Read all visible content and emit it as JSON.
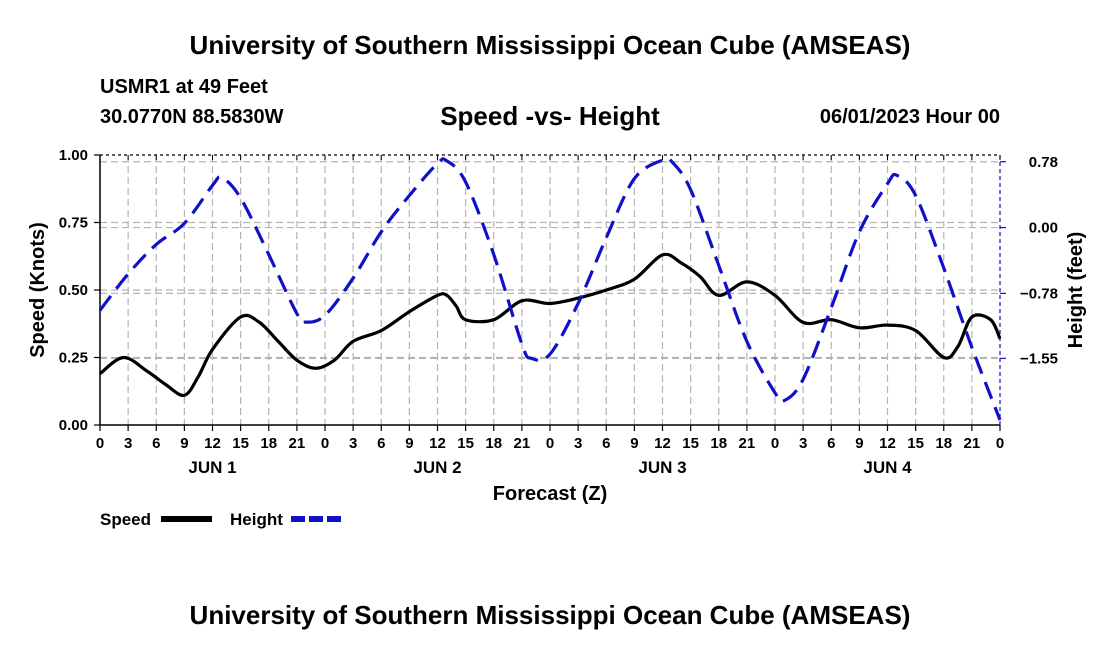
{
  "header": {
    "title": "University of Southern Mississippi Ocean Cube (AMSEAS)",
    "station": "USMR1 at 49 Feet",
    "coords": "30.0770N  88.5830W",
    "chart_title": "Speed -vs- Height",
    "date": "06/01/2023 Hour 00"
  },
  "footer": {
    "title": "University of Southern Mississippi Ocean Cube (AMSEAS)"
  },
  "colors": {
    "speed": "#000000",
    "height": "#1010c8",
    "grid": "#b4b4b4"
  },
  "chart_data": {
    "type": "line",
    "title": "Speed -vs- Height",
    "xlabel": "Forecast (Z)",
    "ylabel": "Speed (Knots)",
    "y2label": "Height (feet)",
    "xlim": [
      0,
      96
    ],
    "ylim": [
      0,
      1.0
    ],
    "y2lim": [
      -2.34,
      0.86
    ],
    "x_ticks": [
      0,
      3,
      6,
      9,
      12,
      15,
      18,
      21,
      24,
      27,
      30,
      33,
      36,
      39,
      42,
      45,
      48,
      51,
      54,
      57,
      60,
      63,
      66,
      69,
      72,
      75,
      78,
      81,
      84,
      87,
      90,
      93,
      96
    ],
    "x_tick_labels": [
      "0",
      "3",
      "6",
      "9",
      "12",
      "15",
      "18",
      "21",
      "0",
      "3",
      "6",
      "9",
      "12",
      "15",
      "18",
      "21",
      "0",
      "3",
      "6",
      "9",
      "12",
      "15",
      "18",
      "21",
      "0",
      "3",
      "6",
      "9",
      "12",
      "15",
      "18",
      "21",
      "0"
    ],
    "day_labels": [
      {
        "x": 12,
        "label": "JUN 1"
      },
      {
        "x": 36,
        "label": "JUN 2"
      },
      {
        "x": 60,
        "label": "JUN 3"
      },
      {
        "x": 84,
        "label": "JUN 4"
      }
    ],
    "y_ticks": [
      0,
      0.25,
      0.5,
      0.75,
      1.0
    ],
    "y_tick_labels": [
      "0.00",
      "0.25",
      "0.50",
      "0.75",
      "1.00"
    ],
    "y2_ticks": [
      -1.55,
      -0.78,
      0.0,
      0.78
    ],
    "y2_tick_labels": [
      "−1.55",
      "−0.78",
      "0.00",
      "0.78"
    ],
    "grid": true,
    "legend": [
      {
        "name": "Speed",
        "style": "solid"
      },
      {
        "name": "Height",
        "style": "dashed"
      }
    ],
    "legend_position": "bottom-left",
    "series": [
      {
        "name": "Speed",
        "axis": "left",
        "style": "solid",
        "x": [
          0,
          2.5,
          5,
          7,
          9,
          10.5,
          12,
          15,
          17,
          19,
          21,
          23,
          25,
          27,
          30,
          33,
          36,
          37,
          38,
          39,
          42,
          45,
          48,
          51,
          54,
          57,
          60,
          62,
          64,
          66,
          69,
          72,
          75,
          78,
          81,
          84,
          87,
          90,
          91.5,
          93,
          95,
          96
        ],
        "y": [
          0.19,
          0.25,
          0.2,
          0.15,
          0.11,
          0.18,
          0.28,
          0.4,
          0.38,
          0.31,
          0.24,
          0.21,
          0.24,
          0.31,
          0.35,
          0.42,
          0.48,
          0.48,
          0.44,
          0.39,
          0.39,
          0.46,
          0.45,
          0.47,
          0.5,
          0.54,
          0.63,
          0.6,
          0.55,
          0.48,
          0.53,
          0.48,
          0.38,
          0.39,
          0.36,
          0.37,
          0.35,
          0.25,
          0.29,
          0.4,
          0.39,
          0.32
        ]
      },
      {
        "name": "Height",
        "axis": "right",
        "style": "dashed",
        "x": [
          0,
          3,
          6,
          9,
          12,
          13,
          15,
          18,
          21,
          22,
          24,
          27,
          30,
          33,
          36,
          37,
          39,
          42,
          45,
          46,
          48,
          51,
          54,
          57,
          60,
          61,
          63,
          66,
          69,
          72,
          73,
          75,
          78,
          81,
          84,
          85,
          87,
          90,
          93,
          96
        ],
        "y": [
          -0.98,
          -0.55,
          -0.2,
          0.05,
          0.5,
          0.59,
          0.35,
          -0.32,
          -1.02,
          -1.12,
          -1.04,
          -0.6,
          -0.05,
          0.38,
          0.76,
          0.79,
          0.54,
          -0.32,
          -1.38,
          -1.55,
          -1.5,
          -0.9,
          -0.12,
          0.58,
          0.8,
          0.78,
          0.45,
          -0.45,
          -1.35,
          -1.96,
          -2.05,
          -1.8,
          -0.95,
          -0.05,
          0.52,
          0.62,
          0.38,
          -0.48,
          -1.42,
          -2.28
        ]
      }
    ]
  }
}
